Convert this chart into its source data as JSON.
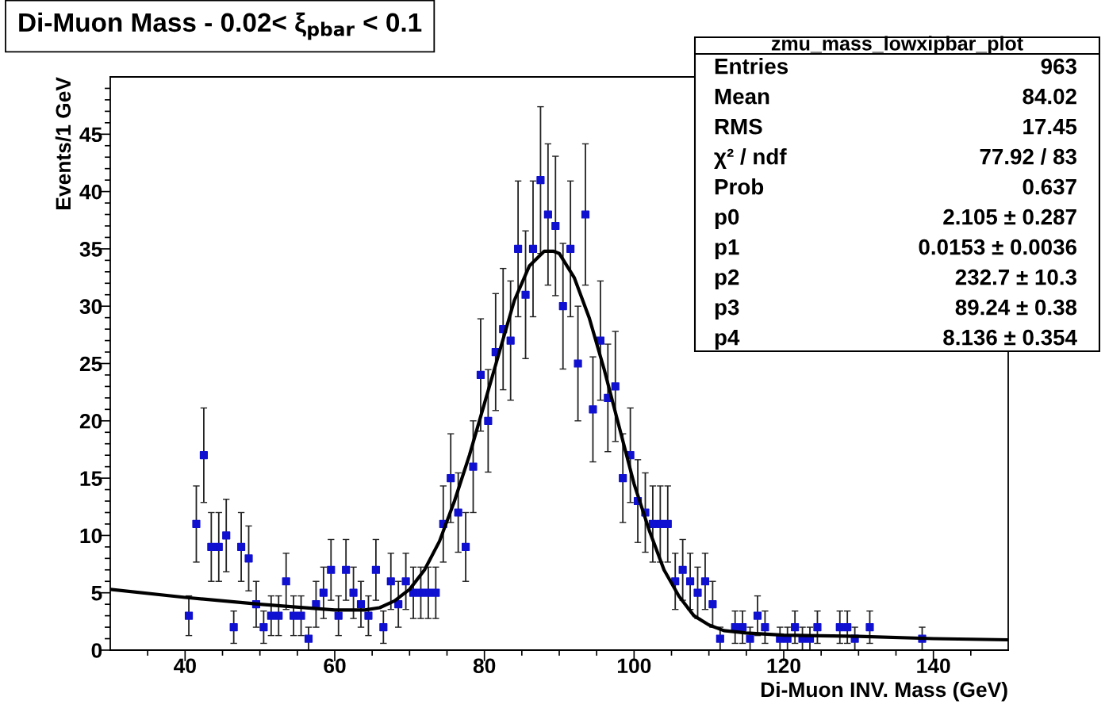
{
  "chart_data": {
    "type": "scatter",
    "title": "Di-Muon Mass - 0.02< ξ$_{pbar}$ < 0.1",
    "xlabel": "Di-Muon INV. Mass (GeV)",
    "ylabel": "Events/1 GeV",
    "xlim": [
      30,
      150
    ],
    "xticks": [
      {
        "value": 35,
        "label": null
      },
      40,
      {
        "value": 45,
        "label": null
      },
      {
        "value": 50,
        "label": null
      },
      {
        "value": 55,
        "label": null
      },
      60,
      {
        "value": 65,
        "label": null
      },
      {
        "value": 70,
        "label": null
      },
      {
        "value": 75,
        "label": null
      },
      80,
      {
        "value": 85,
        "label": null
      },
      {
        "value": 90,
        "label": null
      },
      {
        "value": 95,
        "label": null
      },
      100,
      {
        "value": 105,
        "label": null
      },
      {
        "value": 110,
        "label": null
      },
      {
        "value": 115,
        "label": null
      },
      120,
      {
        "value": 125,
        "label": null
      },
      {
        "value": 130,
        "label": null
      },
      {
        "value": 135,
        "label": null
      },
      140,
      {
        "value": 145,
        "label": null
      }
    ],
    "ylim": [
      0,
      50
    ],
    "yticks": [
      0,
      {
        "value": 1,
        "label": null
      },
      {
        "value": 2,
        "label": null
      },
      {
        "value": 3,
        "label": null
      },
      {
        "value": 4,
        "label": null
      },
      5,
      {
        "value": 6,
        "label": null
      },
      {
        "value": 7,
        "label": null
      },
      {
        "value": 8,
        "label": null
      },
      {
        "value": 9,
        "label": null
      },
      10,
      {
        "value": 11,
        "label": null
      },
      {
        "value": 12,
        "label": null
      },
      {
        "value": 13,
        "label": null
      },
      {
        "value": 14,
        "label": null
      },
      15,
      {
        "value": 16,
        "label": null
      },
      {
        "value": 17,
        "label": null
      },
      {
        "value": 18,
        "label": null
      },
      {
        "value": 19,
        "label": null
      },
      20,
      {
        "value": 21,
        "label": null
      },
      {
        "value": 22,
        "label": null
      },
      {
        "value": 23,
        "label": null
      },
      {
        "value": 24,
        "label": null
      },
      25,
      {
        "value": 26,
        "label": null
      },
      {
        "value": 27,
        "label": null
      },
      {
        "value": 28,
        "label": null
      },
      {
        "value": 29,
        "label": null
      },
      30,
      {
        "value": 31,
        "label": null
      },
      {
        "value": 32,
        "label": null
      },
      {
        "value": 33,
        "label": null
      },
      {
        "value": 34,
        "label": null
      },
      35,
      {
        "value": 36,
        "label": null
      },
      {
        "value": 37,
        "label": null
      },
      {
        "value": 38,
        "label": null
      },
      {
        "value": 39,
        "label": null
      },
      40,
      {
        "value": 41,
        "label": null
      },
      {
        "value": 42,
        "label": null
      },
      {
        "value": 43,
        "label": null
      },
      {
        "value": 44,
        "label": null
      },
      45,
      {
        "value": 46,
        "label": null
      },
      {
        "value": 47,
        "label": null
      },
      {
        "value": 48,
        "label": null
      },
      {
        "value": 49,
        "label": null
      }
    ],
    "grid": false,
    "legend": false,
    "series": [
      {
        "color": "#1010d0",
        "marker": "square",
        "x": [
          40.5,
          41.5,
          42.5,
          43.5,
          44.5,
          45.5,
          46.5,
          47.5,
          48.5,
          49.5,
          50.5,
          51.5,
          52.5,
          53.5,
          54.5,
          55.5,
          56.5,
          57.5,
          58.5,
          59.5,
          60.5,
          61.5,
          62.5,
          63.5,
          64.5,
          65.5,
          66.5,
          67.5,
          68.5,
          69.5,
          70.5,
          71.5,
          72.5,
          73.5,
          74.5,
          75.5,
          76.5,
          77.5,
          78.5,
          79.5,
          80.5,
          81.5,
          82.5,
          83.5,
          84.5,
          85.5,
          86.5,
          87.5,
          88.5,
          89.5,
          90.5,
          91.5,
          92.5,
          93.5,
          94.5,
          95.5,
          96.5,
          97.5,
          98.5,
          99.5,
          100.5,
          101.5,
          102.5,
          103.5,
          104.5,
          105.5,
          106.5,
          107.5,
          108.5,
          109.5,
          110.5,
          111.5,
          113.5,
          114.5,
          115.5,
          116.5,
          117.5,
          119.5,
          120.5,
          121.5,
          122.5,
          123.5,
          124.5,
          127.5,
          128.5,
          129.5,
          131.5,
          138.5
        ],
        "values": [
          3,
          11,
          17,
          9,
          9,
          10,
          2,
          9,
          8,
          4,
          2,
          3,
          3,
          6,
          3,
          3,
          1,
          4,
          5,
          7,
          3,
          7,
          5,
          4,
          3,
          7,
          2,
          6,
          4,
          6,
          5,
          5,
          5,
          5,
          11,
          15,
          12,
          9,
          16,
          24,
          20,
          26,
          28,
          27,
          35,
          31,
          35,
          41,
          38,
          37,
          30,
          35,
          25,
          38,
          21,
          27,
          22,
          23,
          15,
          17,
          13,
          12,
          11,
          11,
          11,
          6,
          7,
          6,
          5,
          6,
          4,
          1,
          2,
          2,
          1,
          3,
          2,
          1,
          1,
          2,
          1,
          1,
          2,
          2,
          2,
          1,
          2,
          1
        ],
        "errors": [
          1.73,
          3.32,
          4.12,
          3,
          3,
          3.16,
          1.41,
          3,
          2.83,
          2,
          1.41,
          1.73,
          1.73,
          2.45,
          1.73,
          1.73,
          1,
          2,
          2.24,
          2.65,
          1.73,
          2.65,
          2.24,
          2,
          1.73,
          2.65,
          1.41,
          2.45,
          2,
          2.45,
          2.24,
          2.24,
          2.24,
          2.24,
          3.32,
          3.87,
          3.46,
          3,
          4,
          4.9,
          4.47,
          5.1,
          5.29,
          5.2,
          5.92,
          5.57,
          5.92,
          6.4,
          6.16,
          6.08,
          5.48,
          5.92,
          5,
          6.16,
          4.58,
          5.2,
          4.69,
          4.8,
          3.87,
          4.12,
          3.61,
          3.46,
          3.32,
          3.32,
          3.32,
          2.45,
          2.65,
          2.45,
          2.24,
          2.45,
          2,
          1,
          1.41,
          1.41,
          1,
          1.73,
          1.41,
          1,
          1,
          1.41,
          1,
          1,
          1.41,
          1.41,
          1.41,
          1,
          1.41,
          1
        ]
      },
      {
        "type": "line",
        "color": "#000000",
        "marker": "none",
        "x": [
          30,
          40,
          50,
          60,
          64,
          66,
          68,
          70,
          72,
          74,
          76,
          78,
          80,
          82,
          84,
          86,
          88,
          89.2,
          90,
          92,
          94,
          96,
          98,
          100,
          102,
          104,
          106,
          108,
          110,
          112,
          115,
          120,
          130,
          140,
          150
        ],
        "values": [
          5.3,
          4.6,
          4.0,
          3.5,
          3.5,
          3.7,
          4.3,
          5.3,
          7.0,
          9.5,
          13,
          17,
          21.5,
          26,
          30.5,
          33.5,
          34.8,
          34.8,
          34.6,
          32.5,
          29,
          24.5,
          19.5,
          14.5,
          10.5,
          7,
          4.7,
          3,
          2.2,
          1.7,
          1.5,
          1.3,
          1.2,
          1.0,
          0.9
        ]
      }
    ],
    "annotations": [
      "zmu_mass_lowxipbar_plot",
      "Entries",
      "963",
      "Mean",
      "84.02",
      "RMS",
      "17.45",
      "χ² / ndf",
      "77.92 / 83",
      "Prob",
      "0.637",
      "p0",
      "2.105 ± 0.287",
      "p1",
      "0.0153 ± 0.0036",
      "p2",
      "232.7 ± 10.3",
      "p3",
      "89.24 ± 0.38",
      "p4",
      "8.136 ± 0.354"
    ]
  }
}
